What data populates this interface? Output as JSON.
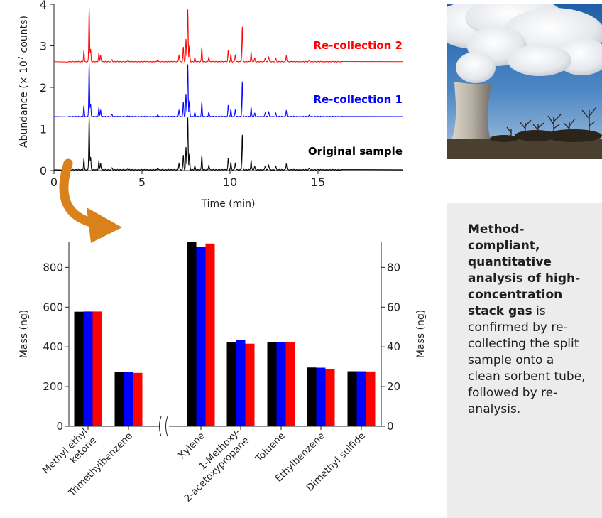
{
  "chart_data": [
    {
      "type": "line",
      "x_ticks": [
        0,
        5,
        10,
        15
      ],
      "y_ticks": [
        0,
        1,
        2,
        3,
        4
      ],
      "xlim": [
        0,
        19.8
      ],
      "ylim": [
        0,
        4
      ],
      "xlabel": "Time (min)",
      "ylabel_main": "Abundance (× 10",
      "ylabel_exp": "7",
      "ylabel_tail": " counts)",
      "series": [
        {
          "name": "Original sample",
          "color": "#000000",
          "baseline": 0.02
        },
        {
          "name": "Re-collection 1",
          "color": "#0000ff",
          "baseline": 1.3
        },
        {
          "name": "Re-collection 2",
          "color": "#ff0000",
          "baseline": 2.62
        }
      ],
      "peaks": [
        {
          "rt": 1.7,
          "h": 0.27
        },
        {
          "rt": 2.0,
          "h": 1.28
        },
        {
          "rt": 2.08,
          "h": 0.3
        },
        {
          "rt": 2.55,
          "h": 0.22
        },
        {
          "rt": 2.65,
          "h": 0.16
        },
        {
          "rt": 3.3,
          "h": 0.05
        },
        {
          "rt": 4.2,
          "h": 0.03
        },
        {
          "rt": 5.9,
          "h": 0.05
        },
        {
          "rt": 7.1,
          "h": 0.16
        },
        {
          "rt": 7.35,
          "h": 0.35
        },
        {
          "rt": 7.5,
          "h": 0.55
        },
        {
          "rt": 7.6,
          "h": 1.28
        },
        {
          "rt": 7.7,
          "h": 0.38
        },
        {
          "rt": 8.0,
          "h": 0.1
        },
        {
          "rt": 8.4,
          "h": 0.35
        },
        {
          "rt": 8.8,
          "h": 0.12
        },
        {
          "rt": 9.9,
          "h": 0.27
        },
        {
          "rt": 10.05,
          "h": 0.18
        },
        {
          "rt": 10.3,
          "h": 0.16
        },
        {
          "rt": 10.7,
          "h": 0.84
        },
        {
          "rt": 11.2,
          "h": 0.23
        },
        {
          "rt": 11.4,
          "h": 0.08
        },
        {
          "rt": 12.0,
          "h": 0.1
        },
        {
          "rt": 12.2,
          "h": 0.12
        },
        {
          "rt": 12.6,
          "h": 0.08
        },
        {
          "rt": 13.2,
          "h": 0.15
        },
        {
          "rt": 14.5,
          "h": 0.03
        }
      ]
    },
    {
      "type": "bar",
      "ylabel": "Mass (ng)",
      "y2label": "Mass (ng)",
      "left_axis": {
        "ylim": [
          0,
          930
        ],
        "ticks": [
          0,
          200,
          400,
          600,
          800
        ],
        "categories": [
          "Methyl ethyl ketone",
          "Trimethylbenzene"
        ],
        "series": [
          {
            "color": "#000000",
            "values": [
              577,
              272
            ]
          },
          {
            "color": "#0000ff",
            "values": [
              578,
              273
            ]
          },
          {
            "color": "#ff0000",
            "values": [
              578,
              269
            ]
          }
        ]
      },
      "right_axis": {
        "ylim": [
          0,
          93
        ],
        "ticks": [
          0,
          20,
          40,
          60,
          80
        ],
        "categories": [
          "Xylene",
          "1-Methoxy-2-acetoxypropane",
          "Toluene",
          "Ethylbenzene",
          "Dimethyl sulfide"
        ],
        "series": [
          {
            "color": "#000000",
            "values": [
              93,
              42.2,
              42.3,
              29.6,
              27.7
            ]
          },
          {
            "color": "#0000ff",
            "values": [
              90.2,
              43.3,
              42.3,
              29.5,
              27.7
            ]
          },
          {
            "color": "#ff0000",
            "values": [
              92,
              41.6,
              42.3,
              28.9,
              27.6
            ]
          }
        ]
      },
      "tick_labels": [
        {
          "lines": [
            "Methyl ethyl",
            "ketone"
          ]
        },
        {
          "lines": [
            "Trimethylbenzene"
          ]
        },
        {
          "lines": [
            "Xylene"
          ]
        },
        {
          "lines": [
            "1-Methoxy-",
            "2-acetoxypropane"
          ]
        },
        {
          "lines": [
            "Toluene"
          ]
        },
        {
          "lines": [
            "Ethylbenzene"
          ]
        },
        {
          "lines": [
            "Dimethyl sulfide"
          ]
        }
      ]
    }
  ],
  "arrow_color": "#d9821c",
  "caption": {
    "bold": "Method-compliant, quantitative analysis of high-concentration stack gas",
    "rest": " is confirmed by re-collecting the split sample onto a clean sorbent tube, followed by re-analysis."
  }
}
